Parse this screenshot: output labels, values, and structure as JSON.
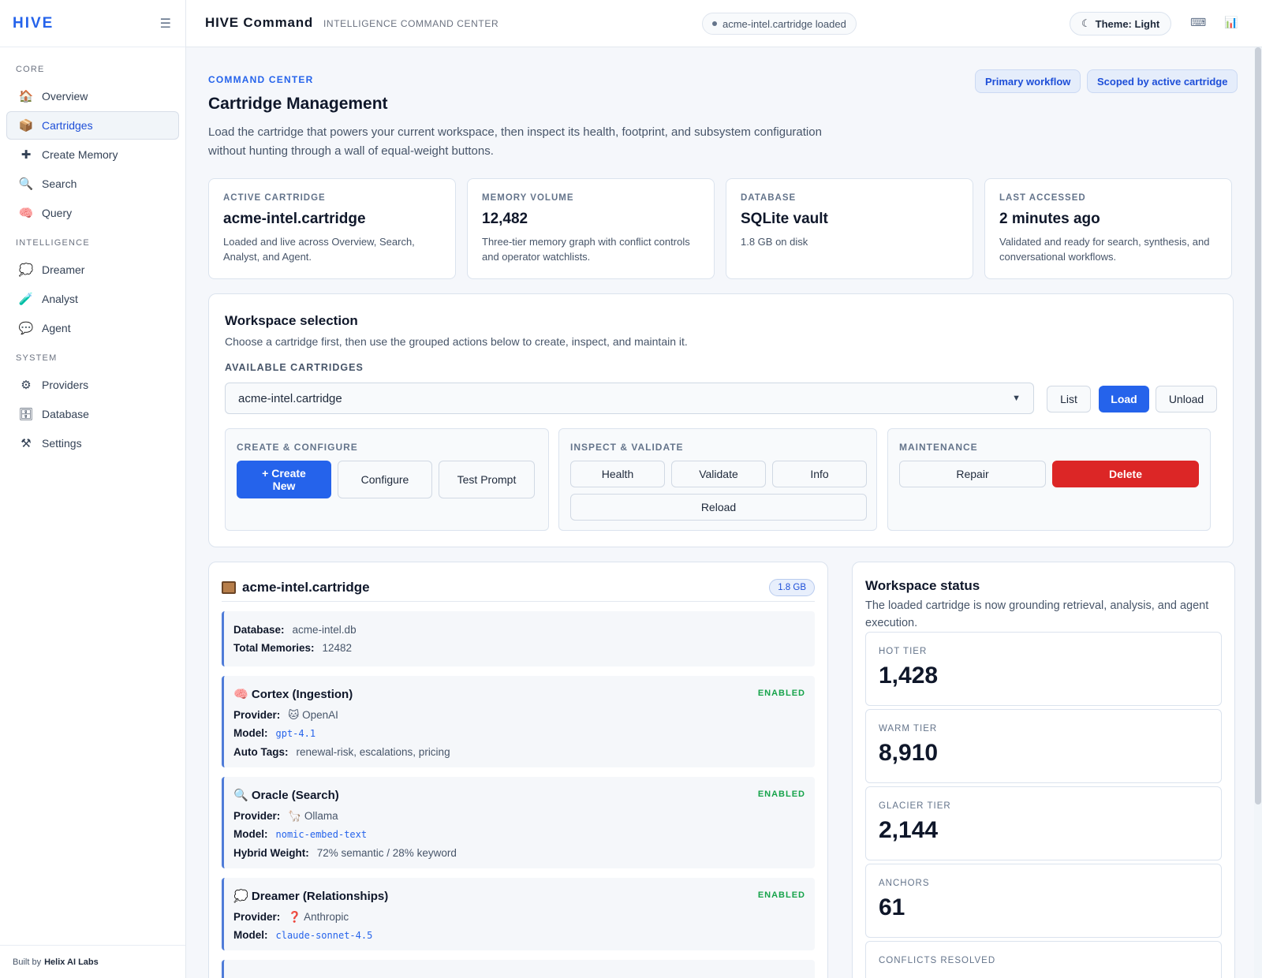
{
  "sidebar": {
    "brand": "HIVE",
    "sections": {
      "core": "CORE",
      "intelligence": "INTELLIGENCE",
      "system": "SYSTEM"
    },
    "core_items": [
      {
        "label": "Overview",
        "icon": "🏠"
      },
      {
        "label": "Cartridges",
        "icon": "📦"
      },
      {
        "label": "Create Memory",
        "icon": "✚"
      },
      {
        "label": "Search",
        "icon": "🔍"
      },
      {
        "label": "Query",
        "icon": "🧠"
      }
    ],
    "intel_items": [
      {
        "label": "Dreamer",
        "icon": "💭"
      },
      {
        "label": "Analyst",
        "icon": "🧪"
      },
      {
        "label": "Agent",
        "icon": "💬"
      }
    ],
    "system_items": [
      {
        "label": "Providers",
        "icon": "⚙"
      },
      {
        "label": "Database",
        "icon": "🗄"
      },
      {
        "label": "Settings",
        "icon": "⚒"
      }
    ],
    "footer_prefix": "Built by",
    "footer_brand": "Helix AI Labs"
  },
  "topbar": {
    "title": "HIVE Command",
    "subtitle": "INTELLIGENCE COMMAND CENTER",
    "status": "acme-intel.cartridge loaded",
    "theme_label": "Theme: Light",
    "theme_icon": "☾"
  },
  "header": {
    "eyebrow": "COMMAND CENTER",
    "title": "Cartridge Management",
    "description": "Load the cartridge that powers your current workspace, then inspect its health, footprint, and subsystem configuration without hunting through a wall of equal-weight buttons.",
    "chips": [
      "Primary workflow",
      "Scoped by active cartridge"
    ]
  },
  "stats": [
    {
      "label": "ACTIVE CARTRIDGE",
      "value": "acme-intel.cartridge",
      "sub": "Loaded and live across Overview, Search, Analyst, and Agent."
    },
    {
      "label": "MEMORY VOLUME",
      "value": "12,482",
      "sub": "Three-tier memory graph with conflict controls and operator watchlists."
    },
    {
      "label": "DATABASE",
      "value": "SQLite vault",
      "sub": "1.8 GB on disk"
    },
    {
      "label": "LAST ACCESSED",
      "value": "2 minutes ago",
      "sub": "Validated and ready for search, synthesis, and conversational workflows."
    }
  ],
  "workspace": {
    "title": "Workspace selection",
    "description": "Choose a cartridge first, then use the grouped actions below to create, inspect, and maintain it.",
    "select_label": "AVAILABLE CARTRIDGES",
    "selected": "acme-intel.cartridge",
    "buttons": {
      "list": "List",
      "load": "Load",
      "unload": "Unload"
    },
    "groups": {
      "create": {
        "label": "CREATE & CONFIGURE",
        "create_new": "+ Create New",
        "configure": "Configure",
        "test_prompt": "Test Prompt"
      },
      "inspect": {
        "label": "INSPECT & VALIDATE",
        "health": "Health",
        "validate": "Validate",
        "info": "Info",
        "reload": "Reload"
      },
      "maintenance": {
        "label": "MAINTENANCE",
        "repair": "Repair",
        "delete": "Delete"
      }
    }
  },
  "cartridge": {
    "name": "acme-intel.cartridge",
    "size": "1.8 GB",
    "db_label": "Database:",
    "db_value": "acme-intel.db",
    "total_label": "Total Memories:",
    "total_value": "12482",
    "enabled_label": "ENABLED",
    "cortex": {
      "icon": "🧠",
      "title": "Cortex (Ingestion)",
      "provider_label": "Provider:",
      "provider_icon": "🐱",
      "provider": "OpenAI",
      "model_label": "Model:",
      "model": "gpt-4.1",
      "tags_label": "Auto Tags:",
      "tags": "renewal-risk, escalations, pricing"
    },
    "oracle": {
      "icon": "🔍",
      "title": "Oracle (Search)",
      "provider_label": "Provider:",
      "provider_icon": "🦙",
      "provider": "Ollama",
      "model_label": "Model:",
      "model": "nomic-embed-text",
      "weight_label": "Hybrid Weight:",
      "weight": "72% semantic / 28% keyword"
    },
    "dreamer": {
      "icon": "💭",
      "title": "Dreamer (Relationships)",
      "provider_label": "Provider:",
      "provider_icon": "❓",
      "provider": "Anthropic",
      "model_label": "Model:",
      "model": "claude-sonnet-4.5"
    }
  },
  "status": {
    "title": "Workspace status",
    "description": "The loaded cartridge is now grounding retrieval, analysis, and agent execution.",
    "tiers": [
      {
        "label": "HOT TIER",
        "value": "1,428"
      },
      {
        "label": "WARM TIER",
        "value": "8,910"
      },
      {
        "label": "GLACIER TIER",
        "value": "2,144"
      },
      {
        "label": "ANCHORS",
        "value": "61"
      },
      {
        "label": "CONFLICTS RESOLVED",
        "value": ""
      }
    ]
  }
}
